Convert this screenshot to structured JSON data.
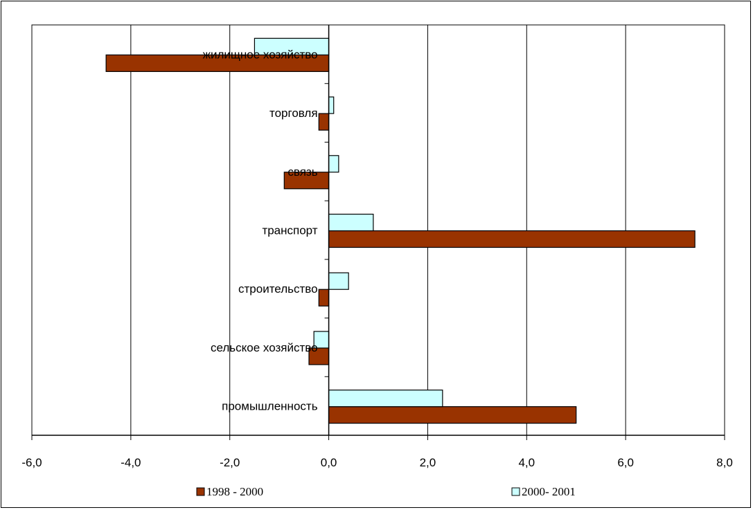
{
  "chart_data": {
    "type": "bar",
    "orientation": "horizontal",
    "categories": [
      "промышленность",
      "сельское хозяйство",
      "строительство",
      "транспорт",
      "связь",
      "торговля",
      "жилищное хозяйство"
    ],
    "series": [
      {
        "name": "1998 - 2000",
        "color": "#993300",
        "values": [
          5.0,
          -0.4,
          -0.2,
          7.4,
          -0.9,
          -0.2,
          -4.5
        ]
      },
      {
        "name": "2000- 2001",
        "color": "#ccffff",
        "values": [
          2.3,
          -0.3,
          0.4,
          0.9,
          0.2,
          0.1,
          -1.5
        ]
      }
    ],
    "xlim": [
      -6,
      8
    ],
    "xticks": [
      "-6,0",
      "-4,0",
      "-2,0",
      "0,0",
      "2,0",
      "4,0",
      "6,0",
      "8,0"
    ],
    "grid": "vertical",
    "legend": "bottom"
  }
}
